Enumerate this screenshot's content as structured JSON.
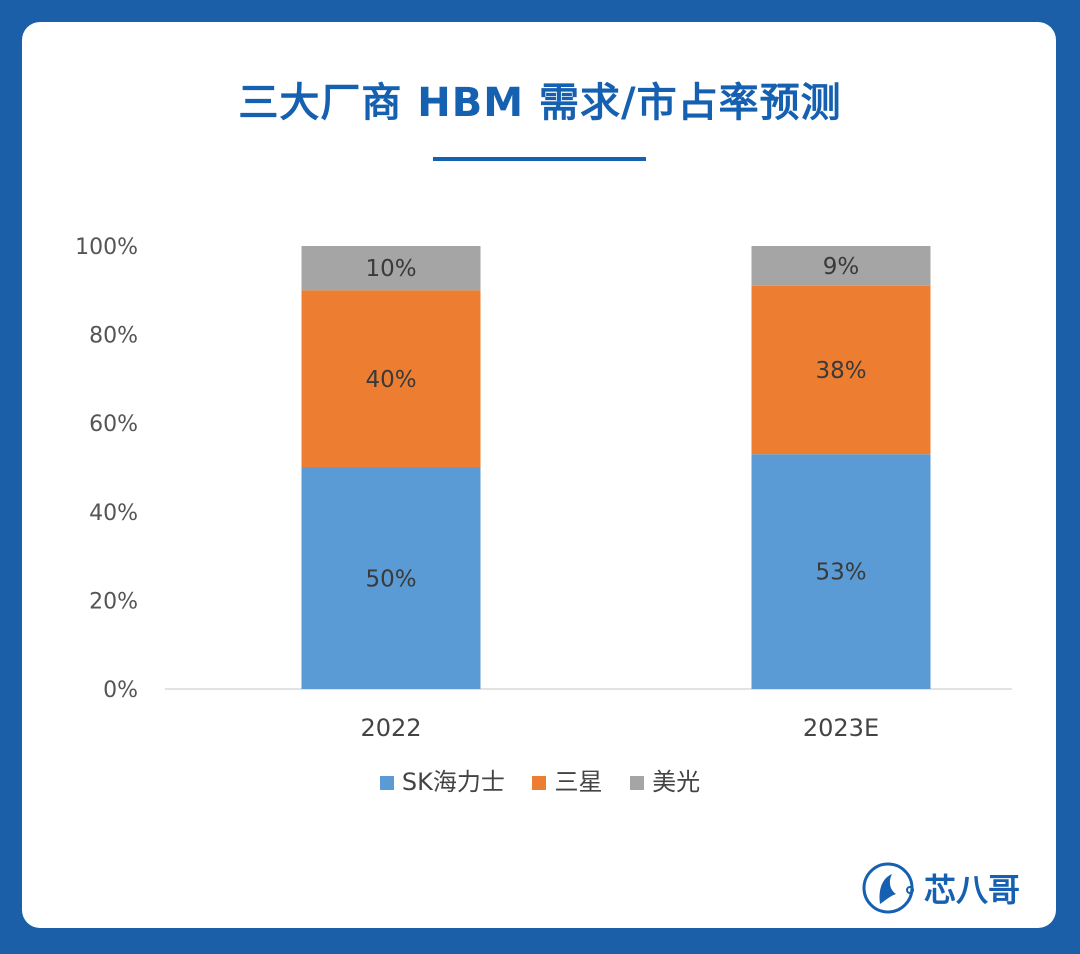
{
  "header": {
    "title": "三大厂商 HBM 需求/市占率预测"
  },
  "brand": {
    "name": "芯八哥",
    "icon": "bird-logo-icon"
  },
  "colors": {
    "sk_hynix": "#5b9bd5",
    "samsung": "#ed7d31",
    "micron": "#a5a5a5",
    "title": "#1560b0"
  },
  "chart_data": {
    "type": "bar",
    "stacked": true,
    "title": "三大厂商 HBM 需求/市占率预测",
    "categories": [
      "2022",
      "2023E"
    ],
    "series": [
      {
        "name": "SK海力士",
        "values": [
          50,
          53
        ],
        "labels": [
          "50%",
          "53%"
        ]
      },
      {
        "name": "三星",
        "values": [
          40,
          38
        ],
        "labels": [
          "40%",
          "38%"
        ]
      },
      {
        "name": "美光",
        "values": [
          10,
          9
        ],
        "labels": [
          "10%",
          "9%"
        ]
      }
    ],
    "yticks": [
      "0%",
      "20%",
      "40%",
      "60%",
      "80%",
      "100%"
    ],
    "ylim": [
      0,
      100
    ],
    "grid": false,
    "legend": "bottom"
  }
}
